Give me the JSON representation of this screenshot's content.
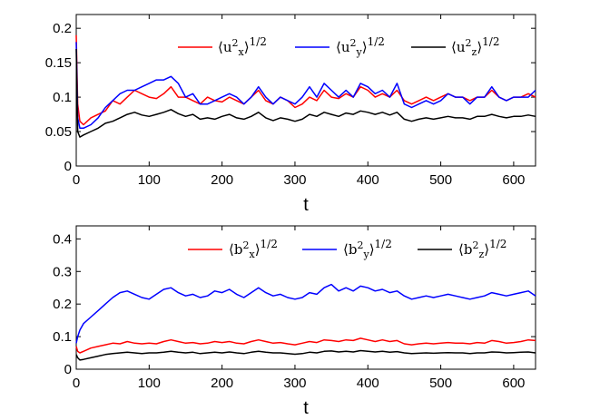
{
  "chart_data": [
    {
      "type": "line",
      "xlabel": "t",
      "ylabel": "",
      "xlim": [
        0,
        630
      ],
      "ylim": [
        0,
        0.22
      ],
      "xticks": [
        "0",
        "100",
        "200",
        "300",
        "400",
        "500",
        "600"
      ],
      "yticks": [
        "0",
        "0.05",
        "0.1",
        "0.15",
        "0.2"
      ],
      "legend_position": "top-right",
      "series": [
        {
          "name": "⟨u_x^2⟩^1/2",
          "legend": {
            "core": "⟨u",
            "sup": "2",
            "sub": "x",
            "tail": "⟩",
            "exp": "1/2"
          },
          "color": "#ff0000",
          "x": [
            0,
            2,
            5,
            10,
            20,
            30,
            40,
            50,
            60,
            70,
            80,
            90,
            100,
            110,
            120,
            130,
            140,
            150,
            160,
            170,
            180,
            190,
            200,
            210,
            220,
            230,
            240,
            250,
            260,
            270,
            280,
            290,
            300,
            310,
            320,
            330,
            340,
            350,
            360,
            370,
            380,
            390,
            400,
            410,
            420,
            430,
            440,
            450,
            460,
            470,
            480,
            490,
            500,
            510,
            520,
            530,
            540,
            550,
            560,
            570,
            580,
            590,
            600,
            610,
            620,
            630
          ],
          "values": [
            0.19,
            0.09,
            0.065,
            0.06,
            0.07,
            0.075,
            0.08,
            0.095,
            0.09,
            0.1,
            0.11,
            0.105,
            0.1,
            0.098,
            0.105,
            0.115,
            0.1,
            0.1,
            0.095,
            0.09,
            0.1,
            0.095,
            0.093,
            0.1,
            0.095,
            0.09,
            0.1,
            0.11,
            0.095,
            0.09,
            0.1,
            0.095,
            0.085,
            0.09,
            0.1,
            0.095,
            0.11,
            0.1,
            0.098,
            0.105,
            0.1,
            0.115,
            0.11,
            0.1,
            0.105,
            0.1,
            0.11,
            0.095,
            0.09,
            0.095,
            0.1,
            0.095,
            0.1,
            0.105,
            0.1,
            0.1,
            0.095,
            0.1,
            0.1,
            0.11,
            0.1,
            0.095,
            0.1,
            0.1,
            0.105,
            0.1
          ]
        },
        {
          "name": "⟨u_y^2⟩^1/2",
          "legend": {
            "core": "⟨u",
            "sup": "2",
            "sub": "y",
            "tail": "⟩",
            "exp": "1/2"
          },
          "color": "#0000ff",
          "x": [
            0,
            2,
            5,
            10,
            20,
            30,
            40,
            50,
            60,
            70,
            80,
            90,
            100,
            110,
            120,
            130,
            140,
            150,
            160,
            170,
            180,
            190,
            200,
            210,
            220,
            230,
            240,
            250,
            260,
            270,
            280,
            290,
            300,
            310,
            320,
            330,
            340,
            350,
            360,
            370,
            380,
            390,
            400,
            410,
            420,
            430,
            440,
            450,
            460,
            470,
            480,
            490,
            500,
            510,
            520,
            530,
            540,
            550,
            560,
            570,
            580,
            590,
            600,
            610,
            620,
            630
          ],
          "values": [
            0.18,
            0.07,
            0.055,
            0.055,
            0.06,
            0.07,
            0.085,
            0.095,
            0.105,
            0.11,
            0.11,
            0.115,
            0.12,
            0.125,
            0.125,
            0.13,
            0.12,
            0.1,
            0.105,
            0.09,
            0.09,
            0.095,
            0.1,
            0.105,
            0.1,
            0.09,
            0.1,
            0.115,
            0.1,
            0.09,
            0.1,
            0.095,
            0.09,
            0.1,
            0.115,
            0.1,
            0.12,
            0.11,
            0.1,
            0.11,
            0.1,
            0.12,
            0.115,
            0.105,
            0.11,
            0.1,
            0.12,
            0.09,
            0.085,
            0.09,
            0.095,
            0.09,
            0.095,
            0.105,
            0.1,
            0.1,
            0.09,
            0.1,
            0.1,
            0.115,
            0.1,
            0.095,
            0.1,
            0.1,
            0.1,
            0.11
          ]
        },
        {
          "name": "⟨u_z^2⟩^1/2",
          "legend": {
            "core": "⟨u",
            "sup": "2",
            "sub": "z",
            "tail": "⟩",
            "exp": "1/2"
          },
          "color": "#000000",
          "x": [
            0,
            2,
            5,
            10,
            20,
            30,
            40,
            50,
            60,
            70,
            80,
            90,
            100,
            110,
            120,
            130,
            140,
            150,
            160,
            170,
            180,
            190,
            200,
            210,
            220,
            230,
            240,
            250,
            260,
            270,
            280,
            290,
            300,
            310,
            320,
            330,
            340,
            350,
            360,
            370,
            380,
            390,
            400,
            410,
            420,
            430,
            440,
            450,
            460,
            470,
            480,
            490,
            500,
            510,
            520,
            530,
            540,
            550,
            560,
            570,
            580,
            590,
            600,
            610,
            620,
            630
          ],
          "values": [
            0.17,
            0.05,
            0.042,
            0.045,
            0.05,
            0.055,
            0.062,
            0.065,
            0.07,
            0.075,
            0.078,
            0.074,
            0.072,
            0.075,
            0.078,
            0.082,
            0.076,
            0.072,
            0.075,
            0.068,
            0.07,
            0.068,
            0.072,
            0.075,
            0.07,
            0.068,
            0.072,
            0.078,
            0.07,
            0.066,
            0.07,
            0.068,
            0.065,
            0.068,
            0.075,
            0.072,
            0.078,
            0.075,
            0.072,
            0.077,
            0.075,
            0.08,
            0.078,
            0.075,
            0.078,
            0.074,
            0.078,
            0.068,
            0.065,
            0.068,
            0.07,
            0.068,
            0.07,
            0.072,
            0.07,
            0.07,
            0.068,
            0.072,
            0.072,
            0.075,
            0.072,
            0.07,
            0.072,
            0.072,
            0.074,
            0.072
          ]
        }
      ]
    },
    {
      "type": "line",
      "xlabel": "t",
      "ylabel": "",
      "xlim": [
        0,
        630
      ],
      "ylim": [
        0,
        0.44
      ],
      "xticks": [
        "0",
        "100",
        "200",
        "300",
        "400",
        "500",
        "600"
      ],
      "yticks": [
        "0",
        "0.1",
        "0.2",
        "0.3",
        "0.4"
      ],
      "legend_position": "top-right",
      "series": [
        {
          "name": "⟨b_x^2⟩^1/2",
          "legend": {
            "core": "⟨b",
            "sup": "2",
            "sub": "x",
            "tail": "⟩",
            "exp": "1/2"
          },
          "color": "#ff0000",
          "x": [
            0,
            2,
            5,
            10,
            20,
            30,
            40,
            50,
            60,
            70,
            80,
            90,
            100,
            110,
            120,
            130,
            140,
            150,
            160,
            170,
            180,
            190,
            200,
            210,
            220,
            230,
            240,
            250,
            260,
            270,
            280,
            290,
            300,
            310,
            320,
            330,
            340,
            350,
            360,
            370,
            380,
            390,
            400,
            410,
            420,
            430,
            440,
            450,
            460,
            470,
            480,
            490,
            500,
            510,
            520,
            530,
            540,
            550,
            560,
            570,
            580,
            590,
            600,
            610,
            620,
            630
          ],
          "values": [
            0.07,
            0.055,
            0.05,
            0.055,
            0.065,
            0.07,
            0.075,
            0.08,
            0.078,
            0.085,
            0.08,
            0.078,
            0.08,
            0.078,
            0.085,
            0.09,
            0.085,
            0.08,
            0.082,
            0.078,
            0.08,
            0.085,
            0.082,
            0.085,
            0.08,
            0.078,
            0.085,
            0.09,
            0.085,
            0.08,
            0.082,
            0.078,
            0.075,
            0.08,
            0.085,
            0.082,
            0.09,
            0.088,
            0.085,
            0.09,
            0.088,
            0.095,
            0.09,
            0.085,
            0.09,
            0.085,
            0.088,
            0.078,
            0.075,
            0.078,
            0.08,
            0.078,
            0.08,
            0.082,
            0.08,
            0.08,
            0.078,
            0.082,
            0.08,
            0.088,
            0.085,
            0.08,
            0.082,
            0.085,
            0.09,
            0.088
          ]
        },
        {
          "name": "⟨b_y^2⟩^1/2",
          "legend": {
            "core": "⟨b",
            "sup": "2",
            "sub": "y",
            "tail": "⟩",
            "exp": "1/2"
          },
          "color": "#0000ff",
          "x": [
            0,
            2,
            5,
            10,
            20,
            30,
            40,
            50,
            60,
            70,
            80,
            90,
            100,
            110,
            120,
            130,
            140,
            150,
            160,
            170,
            180,
            190,
            200,
            210,
            220,
            230,
            240,
            250,
            260,
            270,
            280,
            290,
            300,
            310,
            320,
            330,
            340,
            350,
            360,
            370,
            380,
            390,
            400,
            410,
            420,
            430,
            440,
            450,
            460,
            470,
            480,
            490,
            500,
            510,
            520,
            530,
            540,
            550,
            560,
            570,
            580,
            590,
            600,
            610,
            620,
            630
          ],
          "values": [
            0.08,
            0.1,
            0.12,
            0.14,
            0.16,
            0.18,
            0.2,
            0.22,
            0.235,
            0.24,
            0.23,
            0.22,
            0.215,
            0.23,
            0.245,
            0.25,
            0.235,
            0.225,
            0.23,
            0.22,
            0.225,
            0.24,
            0.235,
            0.245,
            0.23,
            0.22,
            0.235,
            0.25,
            0.235,
            0.225,
            0.23,
            0.22,
            0.215,
            0.22,
            0.235,
            0.23,
            0.25,
            0.26,
            0.24,
            0.25,
            0.24,
            0.255,
            0.25,
            0.24,
            0.245,
            0.235,
            0.24,
            0.225,
            0.215,
            0.22,
            0.225,
            0.22,
            0.225,
            0.23,
            0.225,
            0.22,
            0.215,
            0.22,
            0.225,
            0.235,
            0.23,
            0.225,
            0.23,
            0.235,
            0.24,
            0.225
          ]
        },
        {
          "name": "⟨b_z^2⟩^1/2",
          "legend": {
            "core": "⟨b",
            "sup": "2",
            "sub": "z",
            "tail": "⟩",
            "exp": "1/2"
          },
          "color": "#000000",
          "x": [
            0,
            2,
            5,
            10,
            20,
            30,
            40,
            50,
            60,
            70,
            80,
            90,
            100,
            110,
            120,
            130,
            140,
            150,
            160,
            170,
            180,
            190,
            200,
            210,
            220,
            230,
            240,
            250,
            260,
            270,
            280,
            290,
            300,
            310,
            320,
            330,
            340,
            350,
            360,
            370,
            380,
            390,
            400,
            410,
            420,
            430,
            440,
            450,
            460,
            470,
            480,
            490,
            500,
            510,
            520,
            530,
            540,
            550,
            560,
            570,
            580,
            590,
            600,
            610,
            620,
            630
          ],
          "values": [
            0.045,
            0.035,
            0.028,
            0.03,
            0.035,
            0.04,
            0.045,
            0.048,
            0.05,
            0.052,
            0.05,
            0.048,
            0.05,
            0.05,
            0.052,
            0.055,
            0.052,
            0.05,
            0.052,
            0.048,
            0.05,
            0.052,
            0.05,
            0.053,
            0.05,
            0.048,
            0.052,
            0.055,
            0.052,
            0.05,
            0.05,
            0.048,
            0.046,
            0.048,
            0.052,
            0.05,
            0.055,
            0.056,
            0.053,
            0.055,
            0.053,
            0.057,
            0.055,
            0.053,
            0.055,
            0.052,
            0.054,
            0.05,
            0.048,
            0.049,
            0.05,
            0.049,
            0.05,
            0.051,
            0.05,
            0.05,
            0.048,
            0.05,
            0.05,
            0.053,
            0.052,
            0.05,
            0.051,
            0.052,
            0.053,
            0.05
          ]
        }
      ]
    }
  ]
}
